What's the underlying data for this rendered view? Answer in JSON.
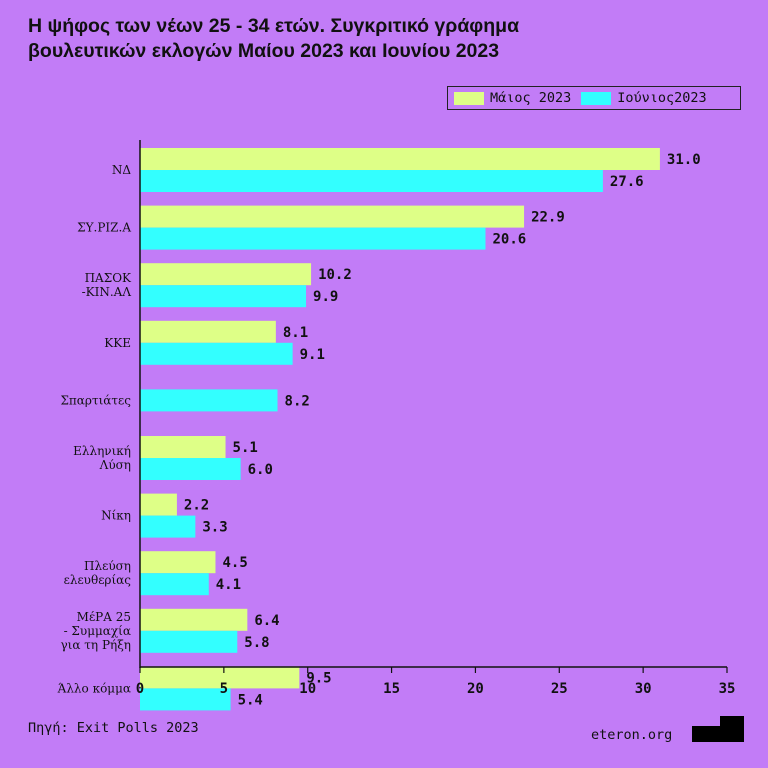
{
  "colors": {
    "background": "#c27cf7",
    "may": "#deff87",
    "june": "#33ffff",
    "text": "#111111"
  },
  "title_lines": [
    "Η ψήφος των νέων 25 - 34 ετών. Συγκριτικό γράφημα",
    "βουλευτικών εκλογών Μαίου 2023 και Ιουνίου 2023"
  ],
  "legend": {
    "may": "Μάιος 2023",
    "june": "Ιούνιος2023"
  },
  "source": "Πηγή: Exit Polls 2023",
  "site": "eteron.org",
  "chart_data": {
    "type": "bar",
    "orientation": "horizontal",
    "title": "Η ψήφος των νέων 25 - 34 ετών. Συγκριτικό γράφημα βουλευτικών εκλογών Μαίου 2023 και Ιουνίου 2023",
    "categories": [
      [
        "ΝΔ"
      ],
      [
        "ΣΥ.ΡΙΖ.Α"
      ],
      [
        "ΠΑΣΟΚ",
        "-ΚΙΝ.ΑΛ"
      ],
      [
        "ΚΚΕ"
      ],
      [
        "Σπαρτιάτες"
      ],
      [
        "Ελληνική",
        "Λύση"
      ],
      [
        "Νίκη"
      ],
      [
        "Πλεύση",
        "ελευθερίας"
      ],
      [
        "ΜέΡΑ 25",
        "-  Συμμαχία",
        "για τη Ρήξη"
      ],
      [
        "Άλλο κόμμα"
      ]
    ],
    "series": [
      {
        "name": "Μάιος 2023",
        "color": "#deff87",
        "values": [
          31.0,
          22.9,
          10.2,
          8.1,
          null,
          5.1,
          2.2,
          4.5,
          6.4,
          9.5
        ]
      },
      {
        "name": "Ιούνιος2023",
        "color": "#33ffff",
        "values": [
          27.6,
          20.6,
          9.9,
          9.1,
          8.2,
          6.0,
          3.3,
          4.1,
          5.8,
          5.4
        ]
      }
    ],
    "xlim": [
      0,
      35
    ],
    "xticks": [
      0,
      5,
      10,
      15,
      20,
      25,
      30,
      35
    ],
    "grid": false,
    "legend_position": "top-right"
  }
}
